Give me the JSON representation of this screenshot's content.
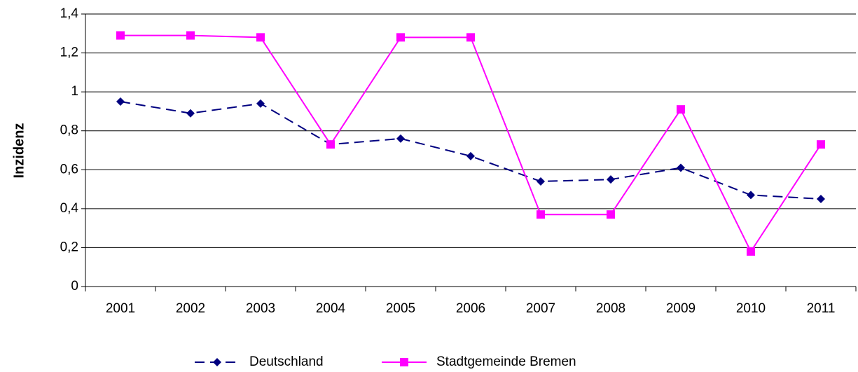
{
  "chart_data": {
    "type": "line",
    "y_label": "Inzidenz",
    "categories": [
      "2001",
      "2002",
      "2003",
      "2004",
      "2005",
      "2006",
      "2007",
      "2008",
      "2009",
      "2010",
      "2011"
    ],
    "series": [
      {
        "name": "Deutschland",
        "color": "#000080",
        "dashed": true,
        "marker": "diamond",
        "values": [
          0.95,
          0.89,
          0.94,
          0.73,
          0.76,
          0.67,
          0.54,
          0.55,
          0.61,
          0.47,
          0.45
        ]
      },
      {
        "name": "Stadtgemeinde Bremen",
        "color": "#ff00ff",
        "dashed": false,
        "marker": "square",
        "values": [
          1.29,
          1.29,
          1.28,
          0.73,
          1.28,
          1.28,
          0.37,
          0.37,
          0.91,
          0.18,
          0.73
        ]
      }
    ],
    "ylim": [
      0,
      1.4
    ],
    "yticks": [
      0,
      {
        "value": 0.2,
        "label": "0,2"
      },
      {
        "value": 0.4,
        "label": "0,4"
      },
      {
        "value": 0.6,
        "label": "0,6"
      },
      {
        "value": 0.8,
        "label": "0,8"
      },
      1,
      {
        "value": 1.2,
        "label": "1,2"
      },
      {
        "value": 1.4,
        "label": "1,4"
      }
    ],
    "grid": true,
    "legend": "bottom"
  }
}
